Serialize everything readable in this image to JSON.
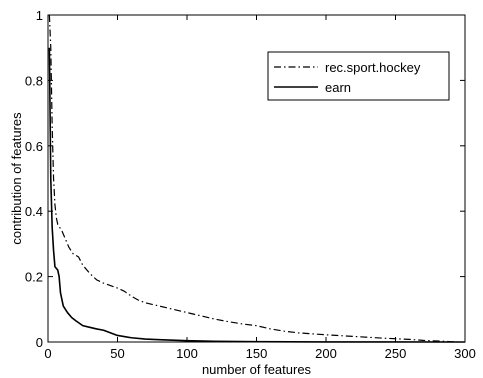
{
  "chart_data": {
    "type": "line",
    "title": "",
    "xlabel": "number of features",
    "ylabel": "contribution of features",
    "xlim": [
      0,
      300
    ],
    "ylim": [
      0,
      1
    ],
    "x_ticks": [
      0,
      50,
      100,
      150,
      200,
      250,
      300
    ],
    "y_ticks": [
      0,
      0.2,
      0.4,
      0.6,
      0.8,
      1
    ],
    "x_tick_labels": [
      "0",
      "50",
      "100",
      "150",
      "200",
      "250",
      "300"
    ],
    "y_tick_labels": [
      "0",
      "0.2",
      "0.4",
      "0.6",
      "0.8",
      "1"
    ],
    "grid": false,
    "legend_position": "top-right",
    "series": [
      {
        "name": "rec.sport.hockey",
        "line_style": "dash-dot",
        "color": "#000000",
        "points": [
          [
            1,
            1.0
          ],
          [
            2,
            0.9
          ],
          [
            3,
            0.66
          ],
          [
            4,
            0.5
          ],
          [
            5,
            0.42
          ],
          [
            6,
            0.38
          ],
          [
            7,
            0.36
          ],
          [
            10,
            0.34
          ],
          [
            13,
            0.31
          ],
          [
            15,
            0.29
          ],
          [
            18,
            0.27
          ],
          [
            20,
            0.265
          ],
          [
            22,
            0.26
          ],
          [
            25,
            0.235
          ],
          [
            30,
            0.21
          ],
          [
            35,
            0.19
          ],
          [
            40,
            0.18
          ],
          [
            50,
            0.165
          ],
          [
            55,
            0.155
          ],
          [
            60,
            0.14
          ],
          [
            65,
            0.128
          ],
          [
            70,
            0.12
          ],
          [
            80,
            0.11
          ],
          [
            90,
            0.1
          ],
          [
            100,
            0.09
          ],
          [
            110,
            0.08
          ],
          [
            120,
            0.07
          ],
          [
            130,
            0.062
          ],
          [
            140,
            0.055
          ],
          [
            150,
            0.05
          ],
          [
            160,
            0.04
          ],
          [
            170,
            0.033
          ],
          [
            180,
            0.028
          ],
          [
            200,
            0.022
          ],
          [
            220,
            0.017
          ],
          [
            240,
            0.012
          ],
          [
            260,
            0.008
          ],
          [
            270,
            0.005
          ],
          [
            280,
            0.003
          ],
          [
            290,
            0.001
          ],
          [
            295,
            0.0
          ]
        ]
      },
      {
        "name": "earn",
        "line_style": "solid",
        "color": "#000000",
        "points": [
          [
            1,
            0.9
          ],
          [
            2,
            0.5
          ],
          [
            3,
            0.35
          ],
          [
            4,
            0.28
          ],
          [
            5,
            0.23
          ],
          [
            7,
            0.22
          ],
          [
            8,
            0.2
          ],
          [
            9,
            0.15
          ],
          [
            11,
            0.11
          ],
          [
            14,
            0.09
          ],
          [
            17,
            0.075
          ],
          [
            20,
            0.065
          ],
          [
            25,
            0.05
          ],
          [
            30,
            0.045
          ],
          [
            35,
            0.04
          ],
          [
            40,
            0.036
          ],
          [
            45,
            0.028
          ],
          [
            50,
            0.02
          ],
          [
            60,
            0.013
          ],
          [
            70,
            0.009
          ],
          [
            80,
            0.007
          ],
          [
            100,
            0.004
          ],
          [
            120,
            0.002
          ],
          [
            150,
            0.001
          ],
          [
            200,
            0.0003
          ],
          [
            300,
            0.0
          ]
        ]
      }
    ]
  }
}
